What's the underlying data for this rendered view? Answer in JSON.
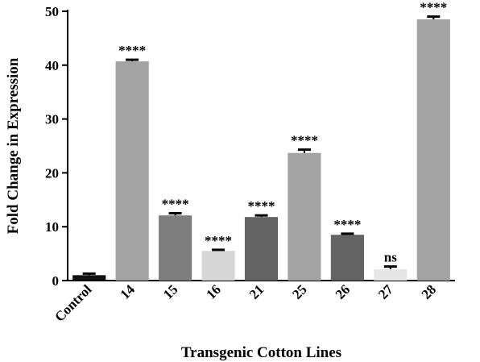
{
  "chart_data": {
    "type": "bar",
    "xlabel": "Transgenic Cotton Lines",
    "ylabel": "Fold Change in Expression",
    "ylim": [
      0,
      50
    ],
    "yticks": [
      0,
      10,
      20,
      30,
      40,
      50
    ],
    "categories": [
      "Control",
      "14",
      "15",
      "16",
      "21",
      "25",
      "26",
      "27",
      "28"
    ],
    "values": [
      1.0,
      40.7,
      12.1,
      5.5,
      11.8,
      23.7,
      8.5,
      2.1,
      48.5
    ],
    "errors": [
      0.3,
      0.3,
      0.4,
      0.2,
      0.3,
      0.6,
      0.2,
      0.5,
      0.5
    ],
    "significance": [
      "",
      "****",
      "****",
      "****",
      "****",
      "****",
      "****",
      "ns",
      "****"
    ],
    "bar_colors": [
      "#111111",
      "#a3a3a3",
      "#7e7e7e",
      "#d6d6d6",
      "#636363",
      "#a3a3a3",
      "#636363",
      "#e6e6e6",
      "#a3a3a3"
    ],
    "grid": false,
    "legend": "none"
  }
}
